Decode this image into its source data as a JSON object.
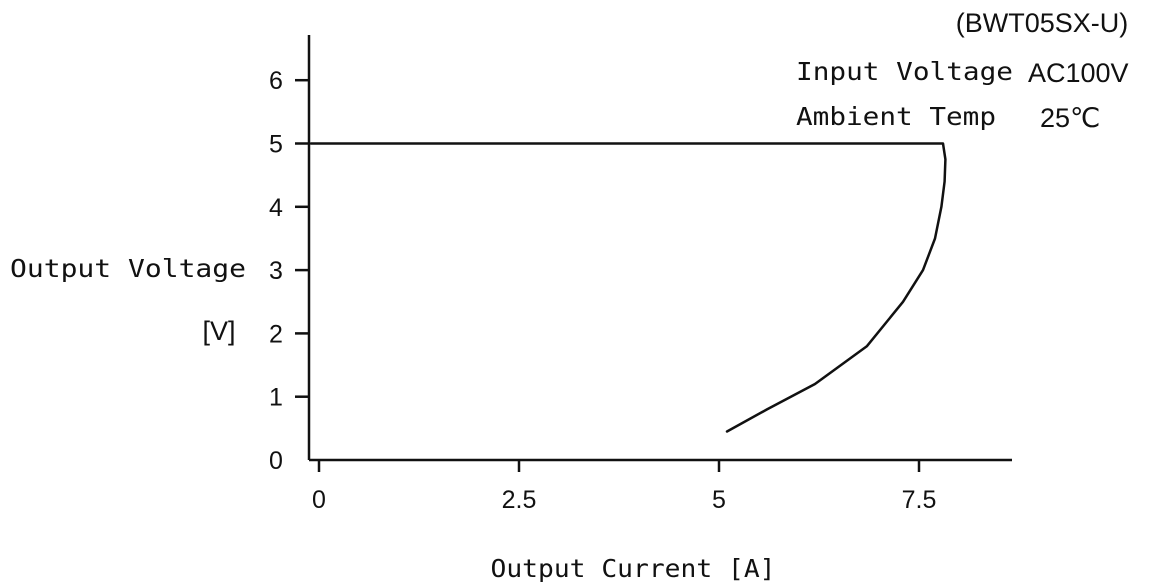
{
  "chart_data": {
    "type": "line",
    "title": "(BWT05SX-U)",
    "conditions": [
      {
        "label": "Input Voltage",
        "value": "AC100V"
      },
      {
        "label": "Ambient Temp",
        "value": "25℃"
      }
    ],
    "xlabel": "Output Current [A]",
    "ylabel": [
      "Output Voltage",
      "[V]"
    ],
    "xlim": [
      -0.1,
      8.7
    ],
    "ylim": [
      0,
      6.7
    ],
    "xticks": [
      0,
      2.5,
      5,
      7.5
    ],
    "xtick_labels": [
      "0",
      "2.5",
      "5",
      "7.5"
    ],
    "yticks": [
      0,
      1,
      2,
      3,
      4,
      5,
      6
    ],
    "ytick_labels": [
      "0",
      "1",
      "2",
      "3",
      "4",
      "5",
      "6"
    ],
    "grid": false,
    "series": [
      {
        "x": [
          -0.1,
          7.8,
          7.83,
          7.82,
          7.78,
          7.7,
          7.55,
          7.3,
          6.85,
          6.2,
          5.6,
          5.1
        ],
        "y": [
          5.0,
          5.0,
          4.75,
          4.4,
          4.0,
          3.5,
          3.0,
          2.5,
          1.8,
          1.2,
          0.8,
          0.45
        ]
      }
    ]
  }
}
